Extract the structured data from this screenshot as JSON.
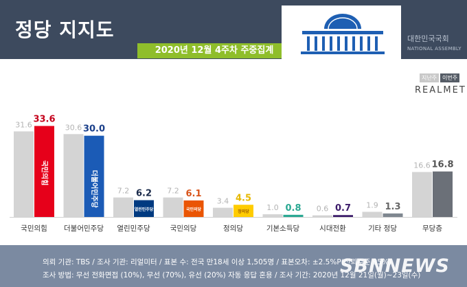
{
  "header": {
    "title": "정당 지지도",
    "subtitle": "2020년 12월 4주차 주중집계",
    "assembly_ko": "대한민국국회",
    "assembly_en": "NATIONAL ASSEMBLY"
  },
  "legend": {
    "prev": "지난주",
    "curr": "이번주",
    "source": "REALMETER"
  },
  "colors": {
    "prev": "#d4d4d4",
    "header": "#3d4a5e",
    "subtitle": "#8fbe2b",
    "footer": "#7b8aa1"
  },
  "chart_data": {
    "type": "bar",
    "categories": [
      "국민의힘",
      "더불어민주당",
      "열린민주당",
      "국민의당",
      "정의당",
      "기본소득당",
      "시대전환",
      "기타 정당",
      "무당층"
    ],
    "series": [
      {
        "name": "지난주",
        "values": [
          31.6,
          30.6,
          7.2,
          7.2,
          3.4,
          1.0,
          0.6,
          1.9,
          16.6
        ]
      },
      {
        "name": "이번주",
        "values": [
          33.6,
          30.0,
          6.2,
          6.1,
          4.5,
          0.8,
          0.7,
          1.3,
          16.8
        ]
      }
    ],
    "current_colors": [
      "#e6001a",
      "#1b5bb6",
      "#003a80",
      "#ea5504",
      "#ffcc00",
      "#2aa892",
      "#3c1b6a",
      "#7f8790",
      "#6b7078"
    ],
    "value_label_colors": [
      "#c4001a",
      "#1a3f8a",
      "#1a2a4a",
      "#d9541a",
      "#e6b800",
      "#2aa892",
      "#3c1b6a",
      "#666666",
      "#555555"
    ],
    "party_logos": [
      "국민의힘",
      "더불어민주당",
      "열린민주당",
      "국민의당",
      "정의당",
      "",
      "",
      "",
      ""
    ],
    "ylim": [
      0,
      36
    ]
  },
  "footer": {
    "line1": "의뢰 기관: TBS / 조사 기관: 리얼미터 / 표본 수: 전국 만18세 이상 1,505명 / 표본오차: ±2.5%P(신뢰수준 95%)",
    "line2": "조사 방법: 무선 전화면접 (10%), 무선 (70%), 유선 (20%) 자동 응답 혼용 / 조사 기간: 2020년 12월 21일(월)~23일(수)"
  },
  "watermark": "SBNNEWS"
}
